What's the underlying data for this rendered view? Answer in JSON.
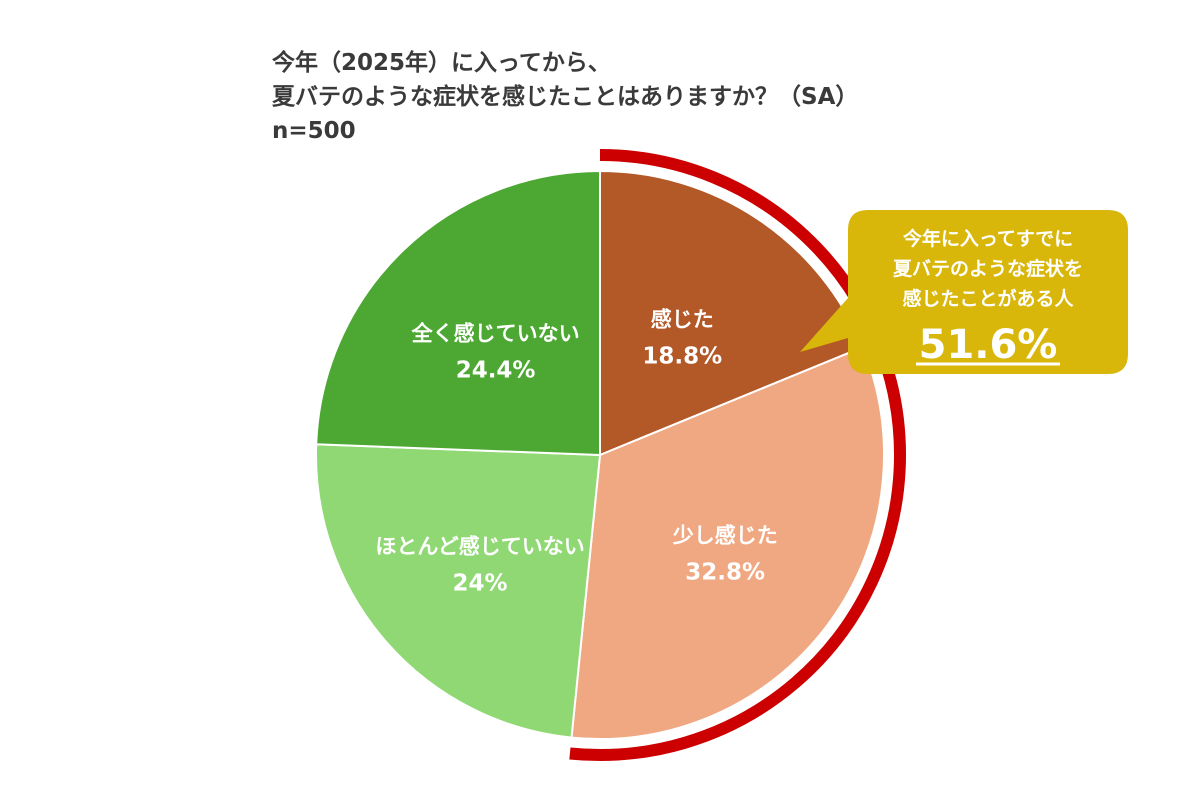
{
  "title": {
    "line1": "今年（2025年）に入ってから、",
    "line2": "夏バテのような症状を感じたことはありますか？（SA）",
    "line3": "n=500"
  },
  "chart_data": {
    "type": "pie",
    "slices": [
      {
        "label": "感じた",
        "value": 18.8,
        "display": "18.8%",
        "color": "#b35827"
      },
      {
        "label": "少し感じた",
        "value": 32.8,
        "display": "32.8%",
        "color": "#f0a882"
      },
      {
        "label": "ほとんど感じていない",
        "value": 24.0,
        "display": "24%",
        "color": "#8fd873"
      },
      {
        "label": "全く感じていない",
        "value": 24.4,
        "display": "24.4%",
        "color": "#4da833"
      }
    ],
    "start": "12 o'clock, clockwise",
    "highlight": {
      "slices": [
        "感じた",
        "少し感じた"
      ],
      "ring_color": "#cc0000"
    },
    "callout": {
      "lines": [
        "今年に入ってすでに",
        "夏バテのような症状を",
        "感じたことがある人"
      ],
      "value": "51.6%",
      "color": "#d9b60a"
    }
  }
}
